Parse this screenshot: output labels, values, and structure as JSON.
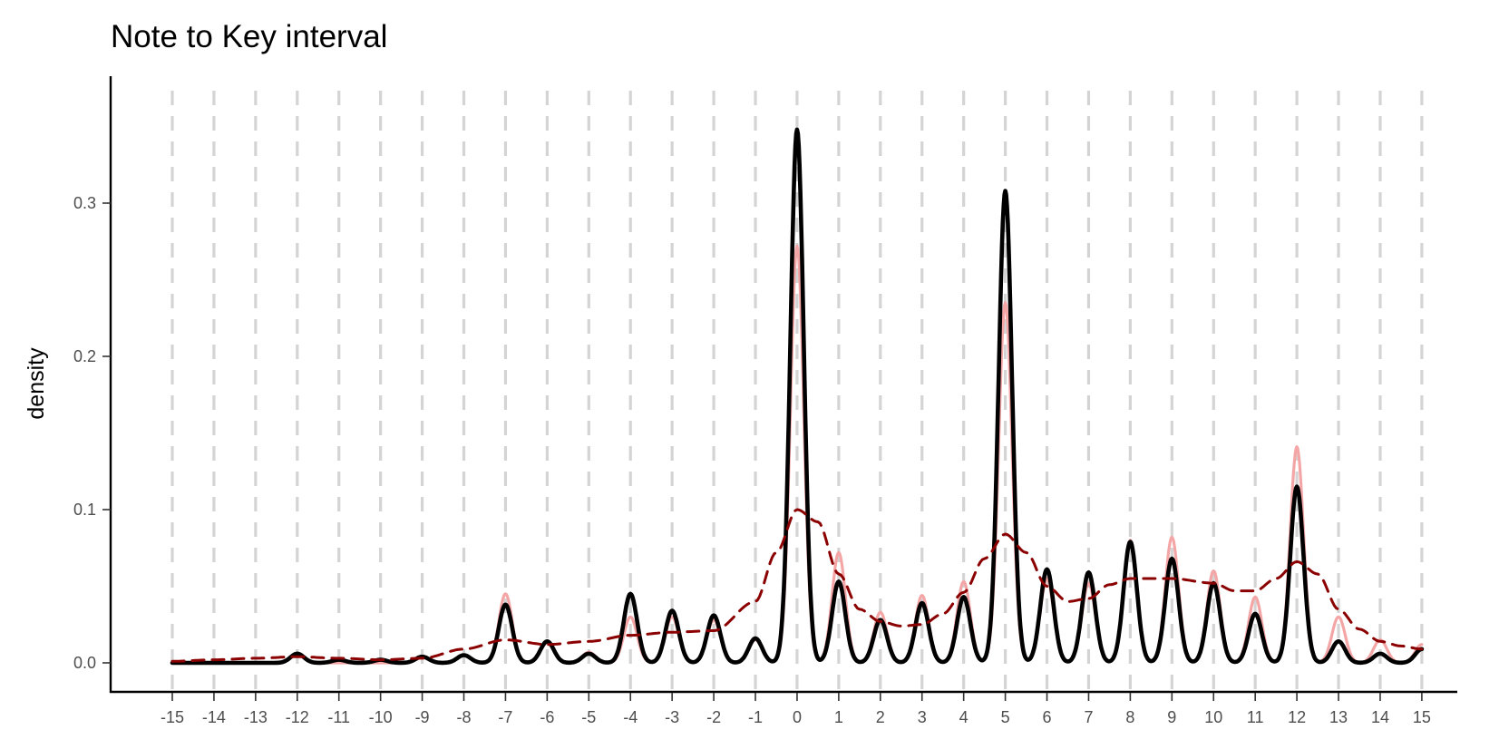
{
  "chart_data": {
    "type": "line",
    "title": "Note to Key interval",
    "xlabel": "",
    "ylabel": "density",
    "xlim": [
      -15,
      15
    ],
    "ylim": [
      0,
      0.35
    ],
    "x_ticks": [
      -15,
      -14,
      -13,
      -12,
      -11,
      -10,
      -9,
      -8,
      -7,
      -6,
      -5,
      -4,
      -3,
      -2,
      -1,
      0,
      1,
      2,
      3,
      4,
      5,
      6,
      7,
      8,
      9,
      10,
      11,
      12,
      13,
      14,
      15
    ],
    "x_tick_labels": [
      "-15",
      "-14",
      "-13",
      "-12",
      "-11",
      "-10",
      "-9",
      "-8",
      "-7",
      "-6",
      "-5",
      "-4",
      "-3",
      "-2",
      "-1",
      "0",
      "1",
      "2",
      "3",
      "4",
      "5",
      "6",
      "7",
      "8",
      "9",
      "10",
      "11",
      "12",
      "13",
      "14",
      "15"
    ],
    "y_ticks": [
      0.0,
      0.1,
      0.2,
      0.3
    ],
    "y_tick_labels": [
      "0.0",
      "0.1",
      "0.2",
      "0.3"
    ],
    "vertical_gridlines": "dashed at every integer",
    "legend": "none",
    "series": [
      {
        "style": "pink-solid",
        "color": "#f4a6a6",
        "peaks": [
          {
            "x": -12,
            "y": 0.006
          },
          {
            "x": -9,
            "y": 0.004
          },
          {
            "x": -8,
            "y": 0.005
          },
          {
            "x": -7,
            "y": 0.045
          },
          {
            "x": -6,
            "y": 0.013
          },
          {
            "x": -5,
            "y": 0.007
          },
          {
            "x": -4,
            "y": 0.03
          },
          {
            "x": -3,
            "y": 0.03
          },
          {
            "x": -2,
            "y": 0.028
          },
          {
            "x": -1,
            "y": 0.015
          },
          {
            "x": 0,
            "y": 0.272
          },
          {
            "x": 1,
            "y": 0.072
          },
          {
            "x": 2,
            "y": 0.033
          },
          {
            "x": 3,
            "y": 0.044
          },
          {
            "x": 4,
            "y": 0.053
          },
          {
            "x": 5,
            "y": 0.235
          },
          {
            "x": 6,
            "y": 0.055
          },
          {
            "x": 7,
            "y": 0.052
          },
          {
            "x": 8,
            "y": 0.08
          },
          {
            "x": 9,
            "y": 0.082
          },
          {
            "x": 10,
            "y": 0.06
          },
          {
            "x": 11,
            "y": 0.043
          },
          {
            "x": 12,
            "y": 0.141
          },
          {
            "x": 13,
            "y": 0.03
          },
          {
            "x": 14,
            "y": 0.015
          },
          {
            "x": 15,
            "y": 0.012
          }
        ]
      },
      {
        "style": "black-solid",
        "color": "#000000",
        "peaks": [
          {
            "x": -12,
            "y": 0.006
          },
          {
            "x": -11,
            "y": 0.002
          },
          {
            "x": -10,
            "y": 0.002
          },
          {
            "x": -9,
            "y": 0.004
          },
          {
            "x": -8,
            "y": 0.005
          },
          {
            "x": -7,
            "y": 0.038
          },
          {
            "x": -6,
            "y": 0.014
          },
          {
            "x": -5,
            "y": 0.006
          },
          {
            "x": -4,
            "y": 0.045
          },
          {
            "x": -3,
            "y": 0.034
          },
          {
            "x": -2,
            "y": 0.031
          },
          {
            "x": -1,
            "y": 0.016
          },
          {
            "x": 0,
            "y": 0.348
          },
          {
            "x": 1,
            "y": 0.053
          },
          {
            "x": 2,
            "y": 0.028
          },
          {
            "x": 3,
            "y": 0.039
          },
          {
            "x": 4,
            "y": 0.043
          },
          {
            "x": 5,
            "y": 0.308
          },
          {
            "x": 6,
            "y": 0.061
          },
          {
            "x": 7,
            "y": 0.059
          },
          {
            "x": 8,
            "y": 0.079
          },
          {
            "x": 9,
            "y": 0.068
          },
          {
            "x": 10,
            "y": 0.052
          },
          {
            "x": 11,
            "y": 0.032
          },
          {
            "x": 12,
            "y": 0.115
          },
          {
            "x": 13,
            "y": 0.014
          },
          {
            "x": 14,
            "y": 0.006
          },
          {
            "x": 15,
            "y": 0.009
          }
        ]
      },
      {
        "style": "darkred-dashed",
        "color": "#8b0000",
        "x": [
          -15,
          -14,
          -13,
          -12,
          -11,
          -10,
          -9,
          -8,
          -7,
          -6,
          -5,
          -4,
          -3,
          -2,
          -1,
          -0.5,
          0,
          0.5,
          1,
          1.5,
          2,
          2.5,
          3,
          3.5,
          4,
          4.5,
          5,
          5.5,
          6,
          6.5,
          7,
          7.5,
          8,
          9,
          10,
          10.5,
          11,
          11.5,
          12,
          12.5,
          13,
          13.5,
          14,
          14.5,
          15
        ],
        "y": [
          0.001,
          0.002,
          0.003,
          0.004,
          0.003,
          0.002,
          0.003,
          0.009,
          0.015,
          0.012,
          0.014,
          0.018,
          0.02,
          0.021,
          0.04,
          0.072,
          0.1,
          0.092,
          0.058,
          0.035,
          0.027,
          0.024,
          0.025,
          0.032,
          0.046,
          0.068,
          0.084,
          0.072,
          0.05,
          0.04,
          0.042,
          0.051,
          0.055,
          0.055,
          0.052,
          0.047,
          0.047,
          0.055,
          0.066,
          0.058,
          0.035,
          0.022,
          0.014,
          0.011,
          0.009
        ]
      }
    ]
  }
}
